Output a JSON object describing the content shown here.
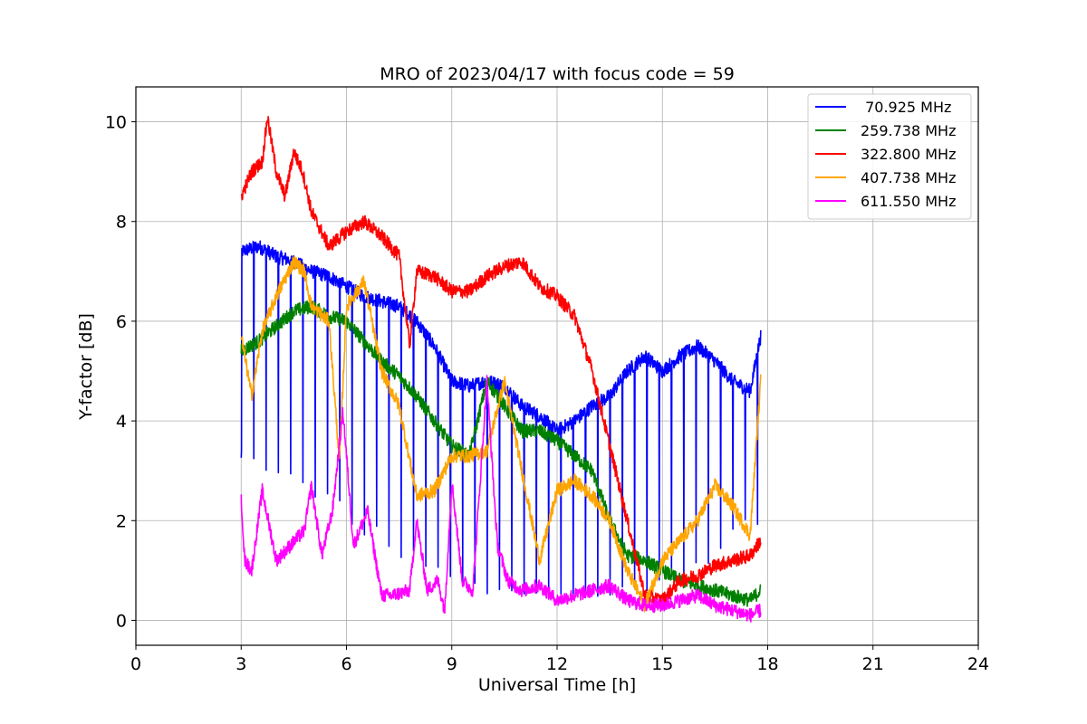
{
  "chart_data": {
    "type": "line",
    "title": "MRO of 2023/04/17 with focus code = 59",
    "xlabel": "Universal Time [h]",
    "ylabel": "Y-factor [dB]",
    "xlim": [
      0,
      24
    ],
    "ylim": [
      -0.5,
      10.7
    ],
    "xticks": [
      0,
      3,
      6,
      9,
      12,
      15,
      18,
      21,
      24
    ],
    "yticks": [
      0,
      2,
      4,
      6,
      8,
      10
    ],
    "grid": true,
    "legend_position": "top-right",
    "series": [
      {
        "name": " 70.925 MHz",
        "color": "#0000ff",
        "x": [
          3.0,
          3.5,
          4.0,
          4.5,
          5.0,
          5.5,
          6.0,
          6.5,
          7.0,
          7.5,
          8.0,
          8.5,
          9.0,
          9.5,
          10.0,
          10.5,
          11.0,
          11.5,
          12.0,
          12.5,
          13.0,
          13.5,
          14.0,
          14.5,
          15.0,
          15.5,
          16.0,
          16.5,
          17.0,
          17.5,
          17.8
        ],
        "y": [
          7.4,
          7.5,
          7.3,
          7.2,
          7.0,
          6.9,
          6.7,
          6.5,
          6.4,
          6.3,
          6.0,
          5.5,
          4.8,
          4.7,
          4.8,
          4.7,
          4.3,
          4.1,
          3.8,
          4.0,
          4.3,
          4.5,
          5.0,
          5.3,
          5.0,
          5.3,
          5.5,
          5.2,
          4.8,
          4.6,
          5.7
        ],
        "dip_period_h": 0.35,
        "dip_values_y": [
          3.3,
          3.0,
          2.9,
          2.7,
          2.5,
          2.3,
          2.0,
          1.8,
          1.5,
          1.3,
          1.1,
          1.0,
          0.8,
          0.7,
          0.6,
          0.55,
          0.5,
          0.5,
          0.4,
          0.4,
          0.4,
          0.5,
          0.6,
          0.7,
          0.8,
          1.0,
          1.2,
          1.5,
          1.8,
          2.0,
          2.5
        ]
      },
      {
        "name": "259.738 MHz",
        "color": "#008000",
        "x": [
          3.0,
          3.5,
          4.0,
          4.5,
          5.0,
          5.5,
          6.0,
          6.5,
          7.0,
          7.5,
          8.0,
          8.5,
          9.0,
          9.5,
          10.0,
          10.5,
          11.0,
          11.5,
          12.0,
          12.5,
          13.0,
          13.5,
          14.0,
          14.5,
          15.0,
          15.5,
          16.0,
          16.5,
          17.0,
          17.5,
          17.8
        ],
        "y": [
          5.4,
          5.6,
          5.9,
          6.2,
          6.3,
          6.1,
          6.0,
          5.6,
          5.2,
          4.9,
          4.5,
          4.0,
          3.5,
          3.3,
          4.8,
          4.3,
          3.8,
          3.8,
          3.6,
          3.3,
          3.0,
          2.0,
          1.3,
          1.2,
          1.0,
          0.8,
          0.7,
          0.6,
          0.5,
          0.4,
          0.6
        ]
      },
      {
        "name": "322.800 MHz",
        "color": "#ff0000",
        "x": [
          3.0,
          3.3,
          3.6,
          3.75,
          4.0,
          4.25,
          4.5,
          4.75,
          5.0,
          5.5,
          6.0,
          6.5,
          7.0,
          7.5,
          7.8,
          8.0,
          8.5,
          9.0,
          9.5,
          10.0,
          10.5,
          11.0,
          11.5,
          12.0,
          12.5,
          13.0,
          13.5,
          14.0,
          14.5,
          15.0,
          15.5,
          16.0,
          16.5,
          17.0,
          17.5,
          17.8
        ],
        "y": [
          8.5,
          9.0,
          9.2,
          10.1,
          9.0,
          8.5,
          9.4,
          9.0,
          8.2,
          7.5,
          7.8,
          8.0,
          7.7,
          7.3,
          5.5,
          7.0,
          6.9,
          6.6,
          6.6,
          6.9,
          7.1,
          7.2,
          6.7,
          6.5,
          6.1,
          5.0,
          3.5,
          2.0,
          0.5,
          0.4,
          0.8,
          0.9,
          1.1,
          1.2,
          1.3,
          1.6
        ]
      },
      {
        "name": "407.738 MHz",
        "color": "#ffa500",
        "x": [
          3.0,
          3.3,
          3.6,
          4.0,
          4.5,
          4.8,
          5.0,
          5.5,
          5.8,
          6.0,
          6.5,
          7.0,
          7.5,
          8.0,
          8.5,
          9.0,
          9.5,
          10.0,
          10.5,
          11.0,
          11.5,
          12.0,
          12.5,
          13.0,
          13.5,
          14.0,
          14.5,
          15.0,
          15.5,
          16.0,
          16.5,
          17.0,
          17.5,
          17.8
        ],
        "y": [
          5.7,
          4.5,
          5.8,
          6.5,
          7.2,
          7.0,
          6.3,
          6.0,
          3.2,
          6.3,
          6.8,
          5.0,
          4.3,
          2.5,
          2.6,
          3.3,
          3.3,
          3.4,
          4.8,
          3.0,
          1.2,
          2.6,
          2.8,
          2.5,
          2.0,
          1.0,
          0.3,
          1.2,
          1.6,
          2.0,
          2.7,
          2.3,
          1.7,
          4.8
        ]
      },
      {
        "name": "611.550 MHz",
        "color": "#ff00ff",
        "x": [
          3.0,
          3.1,
          3.3,
          3.6,
          4.0,
          4.4,
          4.8,
          5.0,
          5.3,
          5.6,
          5.9,
          6.2,
          6.6,
          7.0,
          7.3,
          7.8,
          8.0,
          8.3,
          8.6,
          8.8,
          9.0,
          9.3,
          9.6,
          10.0,
          10.3,
          10.6,
          11.0,
          11.5,
          12.0,
          12.5,
          13.0,
          13.5,
          14.0,
          14.5,
          15.0,
          15.5,
          16.0,
          16.5,
          17.0,
          17.5,
          17.8
        ],
        "y": [
          2.5,
          1.2,
          1.0,
          2.6,
          1.2,
          1.5,
          1.8,
          2.7,
          1.3,
          2.2,
          4.2,
          1.5,
          2.2,
          0.5,
          0.5,
          0.6,
          2.0,
          0.6,
          0.8,
          0.2,
          2.8,
          0.8,
          0.6,
          4.8,
          1.5,
          0.8,
          0.6,
          0.7,
          0.4,
          0.5,
          0.6,
          0.7,
          0.4,
          0.3,
          0.3,
          0.4,
          0.5,
          0.3,
          0.2,
          0.1,
          0.2
        ]
      }
    ]
  }
}
